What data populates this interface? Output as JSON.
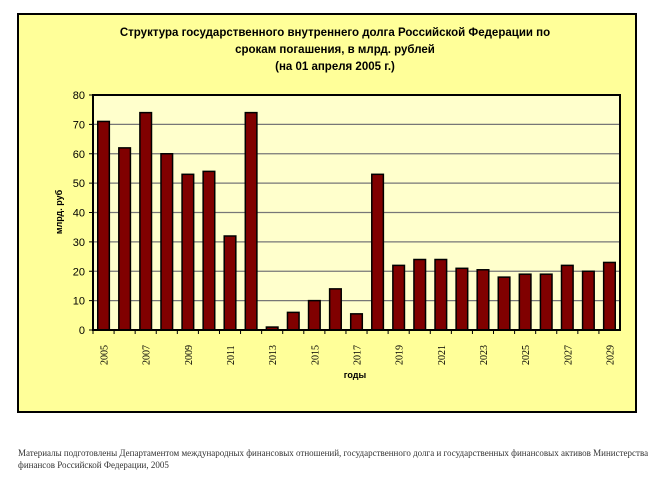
{
  "chart_data": {
    "type": "bar",
    "title": [
      "Структура государственного внутреннего долга Российской Федерации по",
      "срокам погашения, в млрд. рублей",
      "(на 01 апреля 2005 г.)"
    ],
    "xlabel": "годы",
    "ylabel": "млрд. руб",
    "ylim": [
      0,
      80
    ],
    "yticks": [
      "0",
      "10",
      "20",
      "30",
      "40",
      "50",
      "60",
      "70",
      "80"
    ],
    "categories": [
      "2005",
      "2006",
      "2007",
      "2008",
      "2009",
      "2010",
      "2011",
      "2012",
      "2013",
      "2014",
      "2015",
      "2016",
      "2017",
      "2018",
      "2019",
      "2020",
      "2021",
      "2022",
      "2023",
      "2024",
      "2025",
      "2026",
      "2027",
      "2028",
      "2029"
    ],
    "xtick_labels_shown": [
      "2005",
      "2007",
      "2009",
      "2011",
      "2013",
      "2015",
      "2017",
      "2019",
      "2021",
      "2023",
      "2025",
      "2027",
      "2029"
    ],
    "values": [
      71,
      62,
      74,
      60,
      53,
      54,
      32,
      74,
      1,
      6,
      10,
      14,
      5.5,
      53,
      22,
      24,
      24,
      21,
      20.5,
      18,
      19,
      19,
      22,
      20,
      23
    ],
    "grid": true,
    "colors": {
      "bar": "#800000",
      "plot_bg": "#FFFFCC",
      "chart_bg": "#FFFF99"
    }
  },
  "footer": {
    "line1": "Материалы подготовлены Департаментом международных финансовых отношений, государственного долга и государственных финансовых активов Министерства",
    "line2": "финансов Российской Федерации, 2005"
  }
}
